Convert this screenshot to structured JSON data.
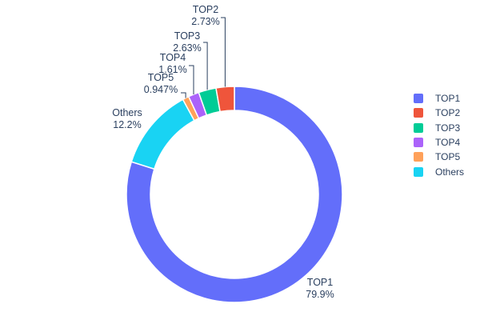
{
  "chart_data": {
    "type": "pie",
    "subtype": "donut",
    "title": "",
    "hole_ratio": 0.78,
    "grid": false,
    "legend_position": "right",
    "labels_outside": true,
    "text_color": "#2a3f5f",
    "slices": [
      {
        "label": "TOP1",
        "value": 79.9,
        "pct_label": "79.9%",
        "color": "#636EFA"
      },
      {
        "label": "TOP2",
        "value": 2.73,
        "pct_label": "2.73%",
        "color": "#EF553B"
      },
      {
        "label": "TOP3",
        "value": 2.63,
        "pct_label": "2.63%",
        "color": "#00CC96"
      },
      {
        "label": "TOP4",
        "value": 1.61,
        "pct_label": "1.61%",
        "color": "#AB63FA"
      },
      {
        "label": "TOP5",
        "value": 0.947,
        "pct_label": "0.947%",
        "color": "#FFA15A"
      },
      {
        "label": "Others",
        "value": 12.2,
        "pct_label": "12.2%",
        "color": "#19D3F3"
      }
    ],
    "clockwise_order_from_top": [
      "TOP1",
      "Others",
      "TOP5",
      "TOP4",
      "TOP3",
      "TOP2"
    ],
    "legend_items": [
      "TOP1",
      "TOP2",
      "TOP3",
      "TOP4",
      "TOP5",
      "Others"
    ]
  }
}
